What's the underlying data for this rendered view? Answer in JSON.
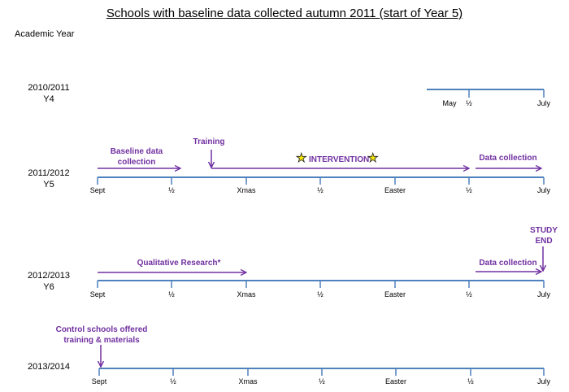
{
  "title": "Schools with baseline data collected autumn 2011 (start of Year 5)",
  "axis_header": "Academic Year",
  "rows": [
    {
      "year": "2010/2011",
      "year_group": "Y4",
      "ticks": [
        "May",
        "½",
        "July"
      ]
    },
    {
      "year": "2011/2012",
      "year_group": "Y5",
      "ticks": [
        "Sept",
        "½",
        "Xmas",
        "½",
        "Easter",
        "½",
        "July"
      ]
    },
    {
      "year": "2012/2013",
      "year_group": "Y6",
      "ticks": [
        "Sept",
        "½",
        "Xmas",
        "½",
        "Easter",
        "½",
        "July"
      ]
    },
    {
      "year": "2013/2014",
      "year_group": "",
      "ticks": [
        "Sept",
        "½",
        "Xmas",
        "½",
        "Easter",
        "½",
        "July"
      ]
    }
  ],
  "annotations": {
    "baseline": "Baseline data collection",
    "training": "Training",
    "intervention": "INTERVENTION",
    "data_collection_y5": "Data collection",
    "qualitative": "Qualitative Research*",
    "data_collection_y6": "Data collection",
    "study_end": "STUDY END",
    "control": "Control schools offered training & materials"
  },
  "colors": {
    "axis": "#4f81bd",
    "arrow": "#7030a0",
    "star": "#f5e70a"
  }
}
